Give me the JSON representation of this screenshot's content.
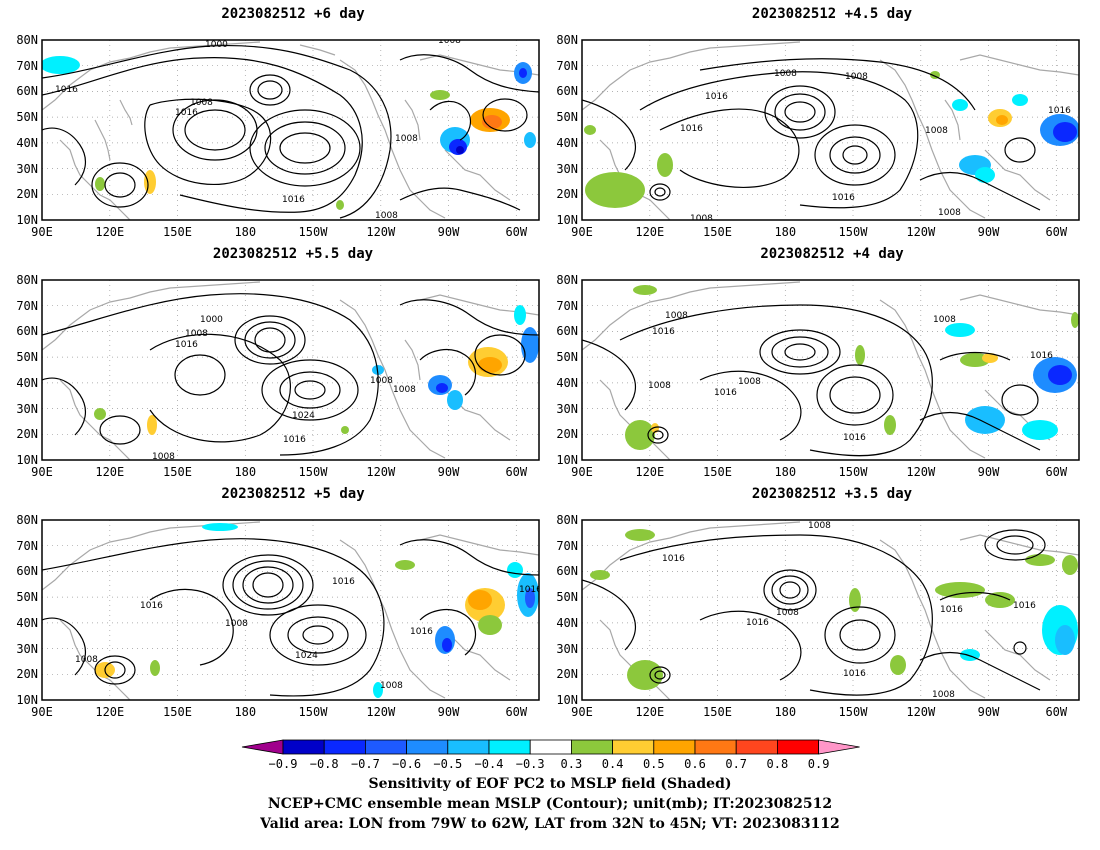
{
  "panels": [
    {
      "title": "2023082512 +6 day"
    },
    {
      "title": "2023082512 +4.5 day"
    },
    {
      "title": "2023082512 +5.5 day"
    },
    {
      "title": "2023082512 +4 day"
    },
    {
      "title": "2023082512 +5 day"
    },
    {
      "title": "2023082512 +3.5 day"
    }
  ],
  "lat_labels": [
    "80N",
    "70N",
    "60N",
    "50N",
    "40N",
    "30N",
    "20N",
    "10N"
  ],
  "lon_labels": [
    "90E",
    "120E",
    "150E",
    "180",
    "150W",
    "120W",
    "90W",
    "60W"
  ],
  "contour_labels": {
    "p0": [
      "1000",
      "1008",
      "1016",
      "1008",
      "1016",
      "1008",
      "1016",
      "1008"
    ],
    "p1": [
      "1008",
      "1008",
      "1016",
      "1016",
      "1008",
      "1016",
      "1016",
      "1008",
      "1008"
    ],
    "p2": [
      "1000",
      "1008",
      "1016",
      "1024",
      "1016",
      "1008",
      "1008",
      "1008"
    ],
    "p3": [
      "1008",
      "1016",
      "1008",
      "1008",
      "1016",
      "1016",
      "1008",
      "1016"
    ],
    "p4": [
      "1016",
      "1016",
      "1008",
      "1024",
      "1016",
      "1016",
      "1008",
      "1008"
    ],
    "p5": [
      "1008",
      "1016",
      "1008",
      "1016",
      "1016",
      "1016",
      "1016",
      "1008"
    ]
  },
  "colorbar": {
    "ticks": [
      "-0.9",
      "-0.8",
      "-0.7",
      "-0.6",
      "-0.5",
      "-0.4",
      "-0.3",
      "0.3",
      "0.4",
      "0.5",
      "0.6",
      "0.7",
      "0.8",
      "0.9"
    ],
    "colors": [
      "#a0008c",
      "#0000c8",
      "#0a28ff",
      "#1e5aff",
      "#1e8cff",
      "#19beff",
      "#00f0ff",
      "#ffffff",
      "#8cc83c",
      "#ffcd32",
      "#ffa500",
      "#ff7814",
      "#ff461e",
      "#ff0000",
      "#ff96c8"
    ]
  },
  "footer": {
    "line1": "Sensitivity of EOF PC2 to MSLP field (Shaded)",
    "line2": "NCEP+CMC ensemble mean MSLP (Contour); unit(mb); IT:2023082512",
    "line3": "Valid area: LON from 79W to 62W, LAT from 32N to 45N; VT: 2023083112"
  }
}
